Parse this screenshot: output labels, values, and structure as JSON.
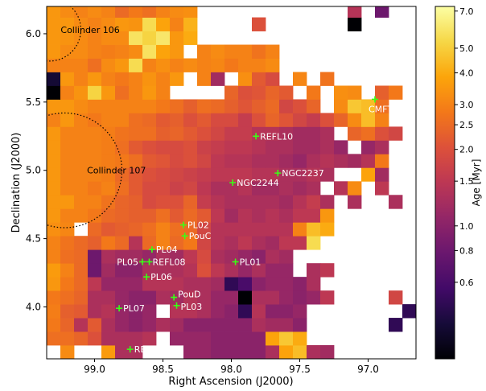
{
  "chart_data": {
    "type": "heatmap",
    "title": "",
    "xlabel": "Right Ascension (J2000)",
    "ylabel": "Declination (J2000)",
    "colorbar_label": "Age [Myr]",
    "x_reversed": true,
    "xlim": [
      99.35,
      96.65
    ],
    "ylim": [
      3.62,
      6.2
    ],
    "x_ticks": [
      99.0,
      98.5,
      98.0,
      97.5,
      97.0
    ],
    "x_tick_labels": [
      "99.0",
      "98.5",
      "98.0",
      "97.5",
      "97.0"
    ],
    "y_ticks": [
      4.0,
      4.5,
      5.0,
      5.5,
      6.0
    ],
    "y_tick_labels": [
      "4.0",
      "4.5",
      "5.0",
      "5.5",
      "6.0"
    ],
    "colorbar": {
      "scale": "log",
      "range": [
        0.3,
        7.3
      ],
      "colormap": "inferno",
      "ticks": [
        0.6,
        0.8,
        1.0,
        1.5,
        2.0,
        2.5,
        3.0,
        4.0,
        5.0,
        7.0
      ],
      "tick_labels": [
        "0.6",
        "0.8",
        "1.0",
        "1.5",
        "2.0",
        "2.5",
        "3.0",
        "4.0",
        "5.0",
        "7.0"
      ]
    },
    "grid": {
      "x_start": 99.35,
      "y_start": 3.62,
      "cell": 0.1,
      "ncols": 27,
      "nrows": 26,
      "empty_value": 0,
      "rows_bottom_to_top_age_myr": [
        [
          0,
          3.2,
          0,
          0,
          3.6,
          1.3,
          1.3,
          0,
          0,
          0,
          1.1,
          1.1,
          1.0,
          1.0,
          1.0,
          1.0,
          1.3,
          3.8,
          4.5,
          1.3,
          1.2,
          0,
          0,
          0,
          0,
          0,
          0
        ],
        [
          2.6,
          2.6,
          2.4,
          2.0,
          1.3,
          1.3,
          1.3,
          1.4,
          0,
          1.1,
          1.1,
          1.1,
          1.0,
          1.0,
          1.0,
          1.0,
          3.8,
          4.8,
          4.0,
          0,
          0,
          0,
          0,
          0,
          0,
          0,
          0
        ],
        [
          2.8,
          2.4,
          1.4,
          2.2,
          1.3,
          1.1,
          1.0,
          1.1,
          1.3,
          1.2,
          1.0,
          1.0,
          1.0,
          1.0,
          1.0,
          1.3,
          1.2,
          1.2,
          1.0,
          0,
          0,
          0,
          0,
          0,
          0,
          0.5,
          0
        ],
        [
          2.9,
          2.3,
          2.2,
          1.3,
          1.4,
          1.1,
          1.0,
          1.1,
          0,
          1.4,
          1.4,
          1.3,
          1.1,
          1.0,
          0.5,
          1.4,
          1.0,
          1.0,
          1.1,
          0,
          0,
          0,
          0,
          0,
          0,
          0,
          0.5
        ],
        [
          2.8,
          2.6,
          2.4,
          1.3,
          1.3,
          1.1,
          1.0,
          1.0,
          1.3,
          1.2,
          1.4,
          1.3,
          1.1,
          1.1,
          0.3,
          1.3,
          1.3,
          1.1,
          1.0,
          1.1,
          1.5,
          0,
          0,
          0,
          0,
          1.8,
          0
        ],
        [
          3.5,
          2.8,
          2.5,
          1.5,
          1.1,
          1.1,
          1.1,
          1.4,
          1.4,
          1.4,
          1.3,
          1.3,
          1.2,
          0.5,
          0.6,
          1.0,
          1.1,
          1.1,
          1.0,
          1.3,
          0,
          0,
          0,
          0,
          0,
          0,
          0
        ],
        [
          3.6,
          3.0,
          2.5,
          0.8,
          1.2,
          1.0,
          1.0,
          1.3,
          1.3,
          1.3,
          1.4,
          2.0,
          1.5,
          1.3,
          1.1,
          1.3,
          1.1,
          1.1,
          0,
          1.3,
          1.5,
          0,
          0,
          0,
          0,
          0,
          0
        ],
        [
          3.0,
          2.6,
          2.5,
          0.8,
          1.3,
          1.2,
          1.2,
          1.1,
          1.3,
          1.2,
          1.5,
          1.9,
          1.3,
          1.2,
          1.1,
          1.0,
          1.3,
          1.2,
          0,
          0,
          0,
          0,
          0,
          0,
          0,
          0,
          0
        ],
        [
          3.0,
          2.7,
          2.5,
          2.3,
          2.8,
          2.5,
          1.4,
          2.5,
          3.0,
          2.5,
          2.8,
          1.8,
          1.4,
          1.3,
          1.5,
          1.3,
          1.2,
          1.5,
          1.5,
          5.5,
          0,
          0,
          0,
          0,
          0,
          0,
          0
        ],
        [
          3.3,
          3.1,
          0,
          2.5,
          2.2,
          2.3,
          2.4,
          2.6,
          3.0,
          2.6,
          2.5,
          1.8,
          1.4,
          1.4,
          1.4,
          1.4,
          1.4,
          1.4,
          3.0,
          4.5,
          4.0,
          0,
          0,
          0,
          0,
          0,
          0
        ],
        [
          3.5,
          3.0,
          3.0,
          2.8,
          2.5,
          2.4,
          2.3,
          2.3,
          2.6,
          2.2,
          2.5,
          2.2,
          1.5,
          1.2,
          1.4,
          1.3,
          1.4,
          1.3,
          1.5,
          1.5,
          3.5,
          0,
          0,
          0,
          0,
          0,
          0
        ],
        [
          3.5,
          3.5,
          3.0,
          3.0,
          2.7,
          2.4,
          2.3,
          1.9,
          2.0,
          2.0,
          2.4,
          1.6,
          1.4,
          1.3,
          1.3,
          1.3,
          1.3,
          1.2,
          1.4,
          1.6,
          1.3,
          0,
          1.3,
          0,
          0,
          1.3,
          0
        ],
        [
          3.5,
          3.0,
          3.0,
          2.8,
          3.0,
          2.6,
          2.2,
          1.9,
          1.9,
          1.7,
          1.8,
          1.5,
          1.3,
          1.3,
          1.4,
          1.2,
          1.2,
          1.3,
          1.2,
          1.3,
          0,
          1.4,
          3.2,
          0,
          1.5,
          0,
          0
        ],
        [
          3.5,
          3.0,
          3.0,
          3.0,
          2.9,
          2.5,
          2.2,
          2.0,
          1.9,
          1.8,
          1.7,
          1.6,
          1.5,
          1.5,
          1.5,
          1.4,
          1.4,
          1.3,
          1.3,
          1.4,
          1.3,
          0,
          0,
          3.8,
          1.2,
          0,
          0
        ],
        [
          3.5,
          3.0,
          3.0,
          3.0,
          2.9,
          2.8,
          2.6,
          2.2,
          2.1,
          1.9,
          2.0,
          1.8,
          1.5,
          1.4,
          1.4,
          1.3,
          1.3,
          1.2,
          1.1,
          1.3,
          1.4,
          1.3,
          1.2,
          1.4,
          2.8,
          0,
          0
        ],
        [
          3.5,
          3.0,
          3.0,
          3.0,
          2.9,
          2.6,
          2.2,
          2.0,
          1.9,
          1.9,
          2.0,
          1.7,
          1.6,
          1.5,
          1.5,
          1.4,
          1.3,
          1.3,
          1.2,
          1.2,
          1.3,
          1.1,
          0,
          1.1,
          1.3,
          0,
          0
        ],
        [
          3.5,
          3.0,
          3.0,
          3.0,
          2.9,
          2.7,
          2.6,
          2.6,
          2.3,
          2.4,
          2.2,
          2.0,
          1.8,
          1.6,
          1.6,
          1.4,
          1.4,
          1.3,
          1.2,
          1.2,
          1.3,
          0,
          2.4,
          2.6,
          2.0,
          1.8,
          0
        ],
        [
          3.0,
          3.5,
          3.0,
          2.8,
          3.0,
          3.0,
          2.6,
          2.5,
          2.2,
          2.3,
          2.0,
          2.2,
          1.9,
          1.9,
          1.6,
          2.0,
          2.4,
          2.1,
          1.8,
          1.6,
          2.0,
          2.4,
          3.2,
          4.5,
          3.0,
          0,
          0
        ],
        [
          3.5,
          3.5,
          3.2,
          3.0,
          3.0,
          3.0,
          3.0,
          3.0,
          2.8,
          2.6,
          2.3,
          2.6,
          2.5,
          2.3,
          2.1,
          2.3,
          2.5,
          1.8,
          2.0,
          2.4,
          0,
          3.2,
          4.8,
          4.5,
          2.6,
          0,
          0
        ],
        [
          0.3,
          3.0,
          3.4,
          5.2,
          3.5,
          2.6,
          3.0,
          3.5,
          3.0,
          0,
          0,
          0,
          0,
          2.4,
          2.0,
          2.1,
          2.4,
          2.2,
          0,
          2.8,
          0,
          3.3,
          3.2,
          0,
          2.3,
          2.8,
          0
        ],
        [
          0.4,
          3.5,
          3.0,
          3.5,
          3.0,
          2.8,
          3.0,
          3.4,
          3.0,
          3.5,
          0,
          3.0,
          1.2,
          0,
          3.3,
          2.2,
          1.9,
          0,
          3.1,
          0,
          2.7,
          0,
          0,
          0,
          0,
          0,
          0
        ],
        [
          3.0,
          3.0,
          3.0,
          2.6,
          3.2,
          3.5,
          5.5,
          3.0,
          3.3,
          3.0,
          3.2,
          3.0,
          3.1,
          2.8,
          3.0,
          3.0,
          3.2,
          0,
          0,
          0,
          0,
          0,
          0,
          0,
          0,
          0,
          0
        ],
        [
          3.5,
          3.2,
          3.2,
          3.0,
          2.9,
          3.0,
          3.2,
          5.8,
          3.8,
          3.5,
          0,
          3.0,
          3.2,
          3.0,
          3.0,
          2.7,
          3.0,
          0,
          0,
          0,
          0,
          0,
          0,
          0,
          0,
          0,
          0
        ],
        [
          3.5,
          3.4,
          3.2,
          3.0,
          3.2,
          3.2,
          5.8,
          5.2,
          6.0,
          3.5,
          4.0,
          0,
          0,
          0,
          0,
          0,
          0,
          0,
          0,
          0,
          0,
          0,
          0,
          0,
          0,
          0,
          0
        ],
        [
          3.5,
          3.5,
          3.2,
          3.0,
          3.2,
          3.5,
          3.4,
          5.5,
          3.8,
          3.0,
          4.2,
          0,
          0,
          0,
          0,
          2.0,
          0,
          0,
          0,
          0,
          0,
          0,
          0.3,
          0,
          0,
          0,
          0
        ],
        [
          3.5,
          3.2,
          3.0,
          3.2,
          3.0,
          2.5,
          2.8,
          2.6,
          3.0,
          3.2,
          3.3,
          0,
          0,
          0,
          0,
          0,
          0,
          0,
          0,
          0,
          0,
          0,
          1.4,
          0,
          0.8,
          0,
          0
        ]
      ]
    },
    "points": [
      {
        "name": "REFL10",
        "ra": 97.82,
        "dec": 5.25
      },
      {
        "name": "NGC2237",
        "ra": 97.66,
        "dec": 4.98
      },
      {
        "name": "NGC2244",
        "ra": 97.99,
        "dec": 4.91
      },
      {
        "name": "CMFT10",
        "ra": 96.95,
        "dec": 5.52
      },
      {
        "name": "PL02",
        "ra": 98.35,
        "dec": 4.6
      },
      {
        "name": "PouC",
        "ra": 98.34,
        "dec": 4.52
      },
      {
        "name": "PL01",
        "ra": 97.97,
        "dec": 4.33
      },
      {
        "name": "PL04",
        "ra": 98.58,
        "dec": 4.42
      },
      {
        "name": "PL05",
        "ra": 98.65,
        "dec": 4.33
      },
      {
        "name": "REFL08",
        "ra": 98.6,
        "dec": 4.33
      },
      {
        "name": "PL06",
        "ra": 98.62,
        "dec": 4.22
      },
      {
        "name": "PouD",
        "ra": 98.42,
        "dec": 4.07
      },
      {
        "name": "PL03",
        "ra": 98.4,
        "dec": 4.01
      },
      {
        "name": "PL07",
        "ra": 98.82,
        "dec": 3.99
      },
      {
        "name": "REFL09",
        "ra": 98.74,
        "dec": 3.69
      }
    ],
    "marker_color": "#39ff14",
    "circles": [
      {
        "label": "Collinder 106",
        "ra": 99.33,
        "dec": 6.03,
        "radius": 0.23
      },
      {
        "label": "Collinder 107",
        "ra": 99.22,
        "dec": 5.0,
        "radius": 0.42
      }
    ]
  }
}
